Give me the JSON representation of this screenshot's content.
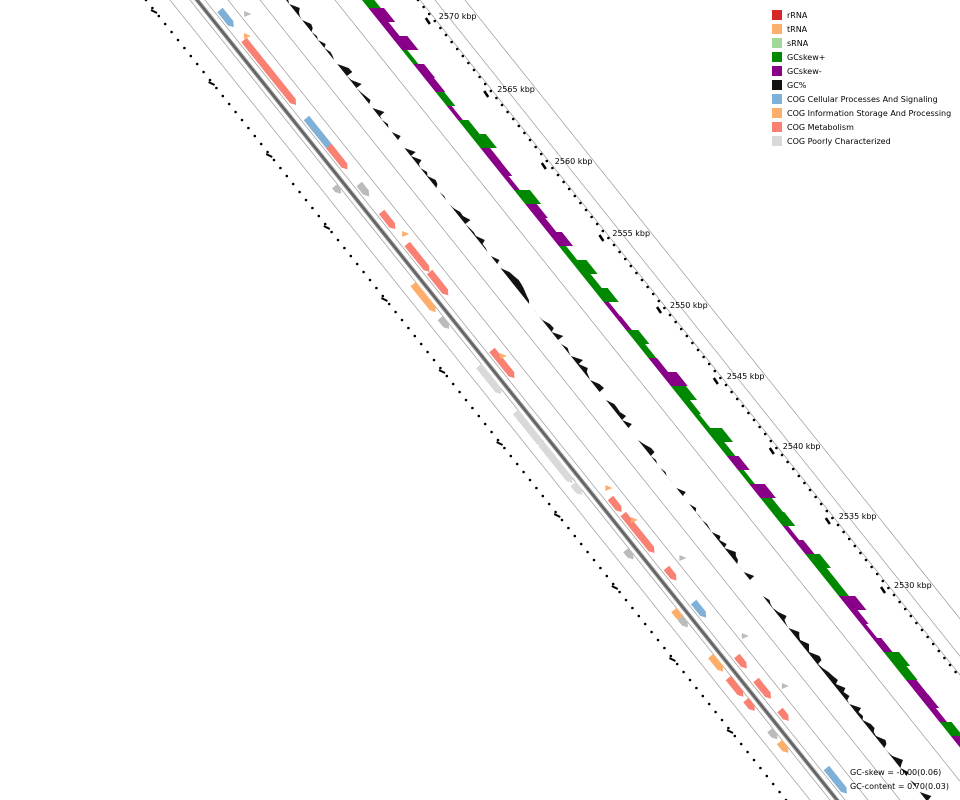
{
  "legend": [
    {
      "label": "rRNA",
      "color": "#d62728"
    },
    {
      "label": "tRNA",
      "color": "#fdae6b"
    },
    {
      "label": "sRNA",
      "color": "#a1d99b"
    },
    {
      "label": "GCskew+",
      "color": "#008800"
    },
    {
      "label": "GCskew-",
      "color": "#880088"
    },
    {
      "label": "GC%",
      "color": "#111111"
    },
    {
      "label": "COG Cellular Processes And Signaling",
      "color": "#7fb0d8"
    },
    {
      "label": "COG Information Storage And Processing",
      "color": "#fdae6b"
    },
    {
      "label": "COG Metabolism",
      "color": "#fa8072"
    },
    {
      "label": "COG Poorly Characterized",
      "color": "#d9d9d9"
    }
  ],
  "ticks": [
    "2570 kbp",
    "2565 kbp",
    "2560 kbp",
    "2555 kbp",
    "2550 kbp",
    "2545 kbp",
    "2540 kbp",
    "2535 kbp",
    "2530 kbp"
  ],
  "stats": {
    "gc_skew": "GC-skew = -0.00(0.06)",
    "gc_content": "GC-content = 0.70(0.03)"
  },
  "colors": {
    "metabolism": "#fa8072",
    "info": "#fdae6b",
    "cellular": "#7fb0d8",
    "poorly_light": "#d9d9d9",
    "poorly_dark": "#bbbbbb",
    "gc": "#111111",
    "skew_pos": "#008800",
    "skew_neg": "#880088"
  }
}
